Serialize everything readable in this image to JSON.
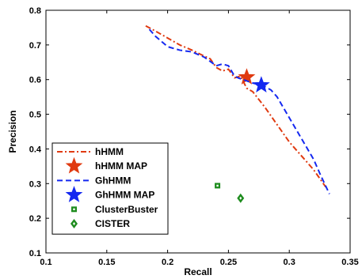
{
  "chart_data": {
    "type": "line",
    "xlabel": "Recall",
    "ylabel": "Precision",
    "xlim": [
      0.1,
      0.35
    ],
    "ylim": [
      0.1,
      0.8
    ],
    "xticks": [
      "0.1",
      "0.15",
      "0.2",
      "0.25",
      "0.3",
      "0.35"
    ],
    "yticks": [
      "0.1",
      "0.2",
      "0.3",
      "0.4",
      "0.5",
      "0.6",
      "0.7",
      "0.8"
    ],
    "grid": false,
    "legend_position": "bottom-left",
    "series": [
      {
        "name": "hHMM",
        "kind": "line",
        "style": "dash-dot",
        "color": "#e03a10",
        "x": [
          0.182,
          0.19,
          0.2,
          0.21,
          0.22,
          0.23,
          0.235,
          0.24,
          0.245,
          0.25,
          0.255,
          0.26,
          0.265,
          0.27,
          0.28,
          0.29,
          0.3,
          0.31,
          0.32,
          0.33
        ],
        "y": [
          0.755,
          0.74,
          0.72,
          0.7,
          0.685,
          0.668,
          0.66,
          0.635,
          0.625,
          0.63,
          0.605,
          0.61,
          0.575,
          0.565,
          0.52,
          0.47,
          0.42,
          0.38,
          0.34,
          0.29
        ]
      },
      {
        "name": "hHMM MAP",
        "kind": "marker",
        "marker": "star",
        "color": "#e03a10",
        "x": [
          0.265
        ],
        "y": [
          0.607
        ]
      },
      {
        "name": "GhHMM",
        "kind": "line",
        "style": "dashed",
        "color": "#1428f0",
        "x": [
          0.185,
          0.19,
          0.2,
          0.21,
          0.22,
          0.23,
          0.24,
          0.245,
          0.25,
          0.255,
          0.258,
          0.262,
          0.27,
          0.278,
          0.285,
          0.29,
          0.3,
          0.31,
          0.32,
          0.325,
          0.333
        ],
        "y": [
          0.745,
          0.725,
          0.695,
          0.685,
          0.68,
          0.665,
          0.64,
          0.645,
          0.64,
          0.61,
          0.605,
          0.6,
          0.59,
          0.583,
          0.57,
          0.55,
          0.49,
          0.43,
          0.37,
          0.33,
          0.27
        ]
      },
      {
        "name": "GhHMM MAP",
        "kind": "marker",
        "marker": "star",
        "color": "#1428f0",
        "x": [
          0.277
        ],
        "y": [
          0.584
        ]
      },
      {
        "name": "ClusterBuster",
        "kind": "marker",
        "marker": "square",
        "color": "#1e8c1e",
        "x": [
          0.241
        ],
        "y": [
          0.294
        ]
      },
      {
        "name": "CISTER",
        "kind": "marker",
        "marker": "diamond",
        "color": "#1e8c1e",
        "x": [
          0.26
        ],
        "y": [
          0.258
        ]
      }
    ]
  }
}
